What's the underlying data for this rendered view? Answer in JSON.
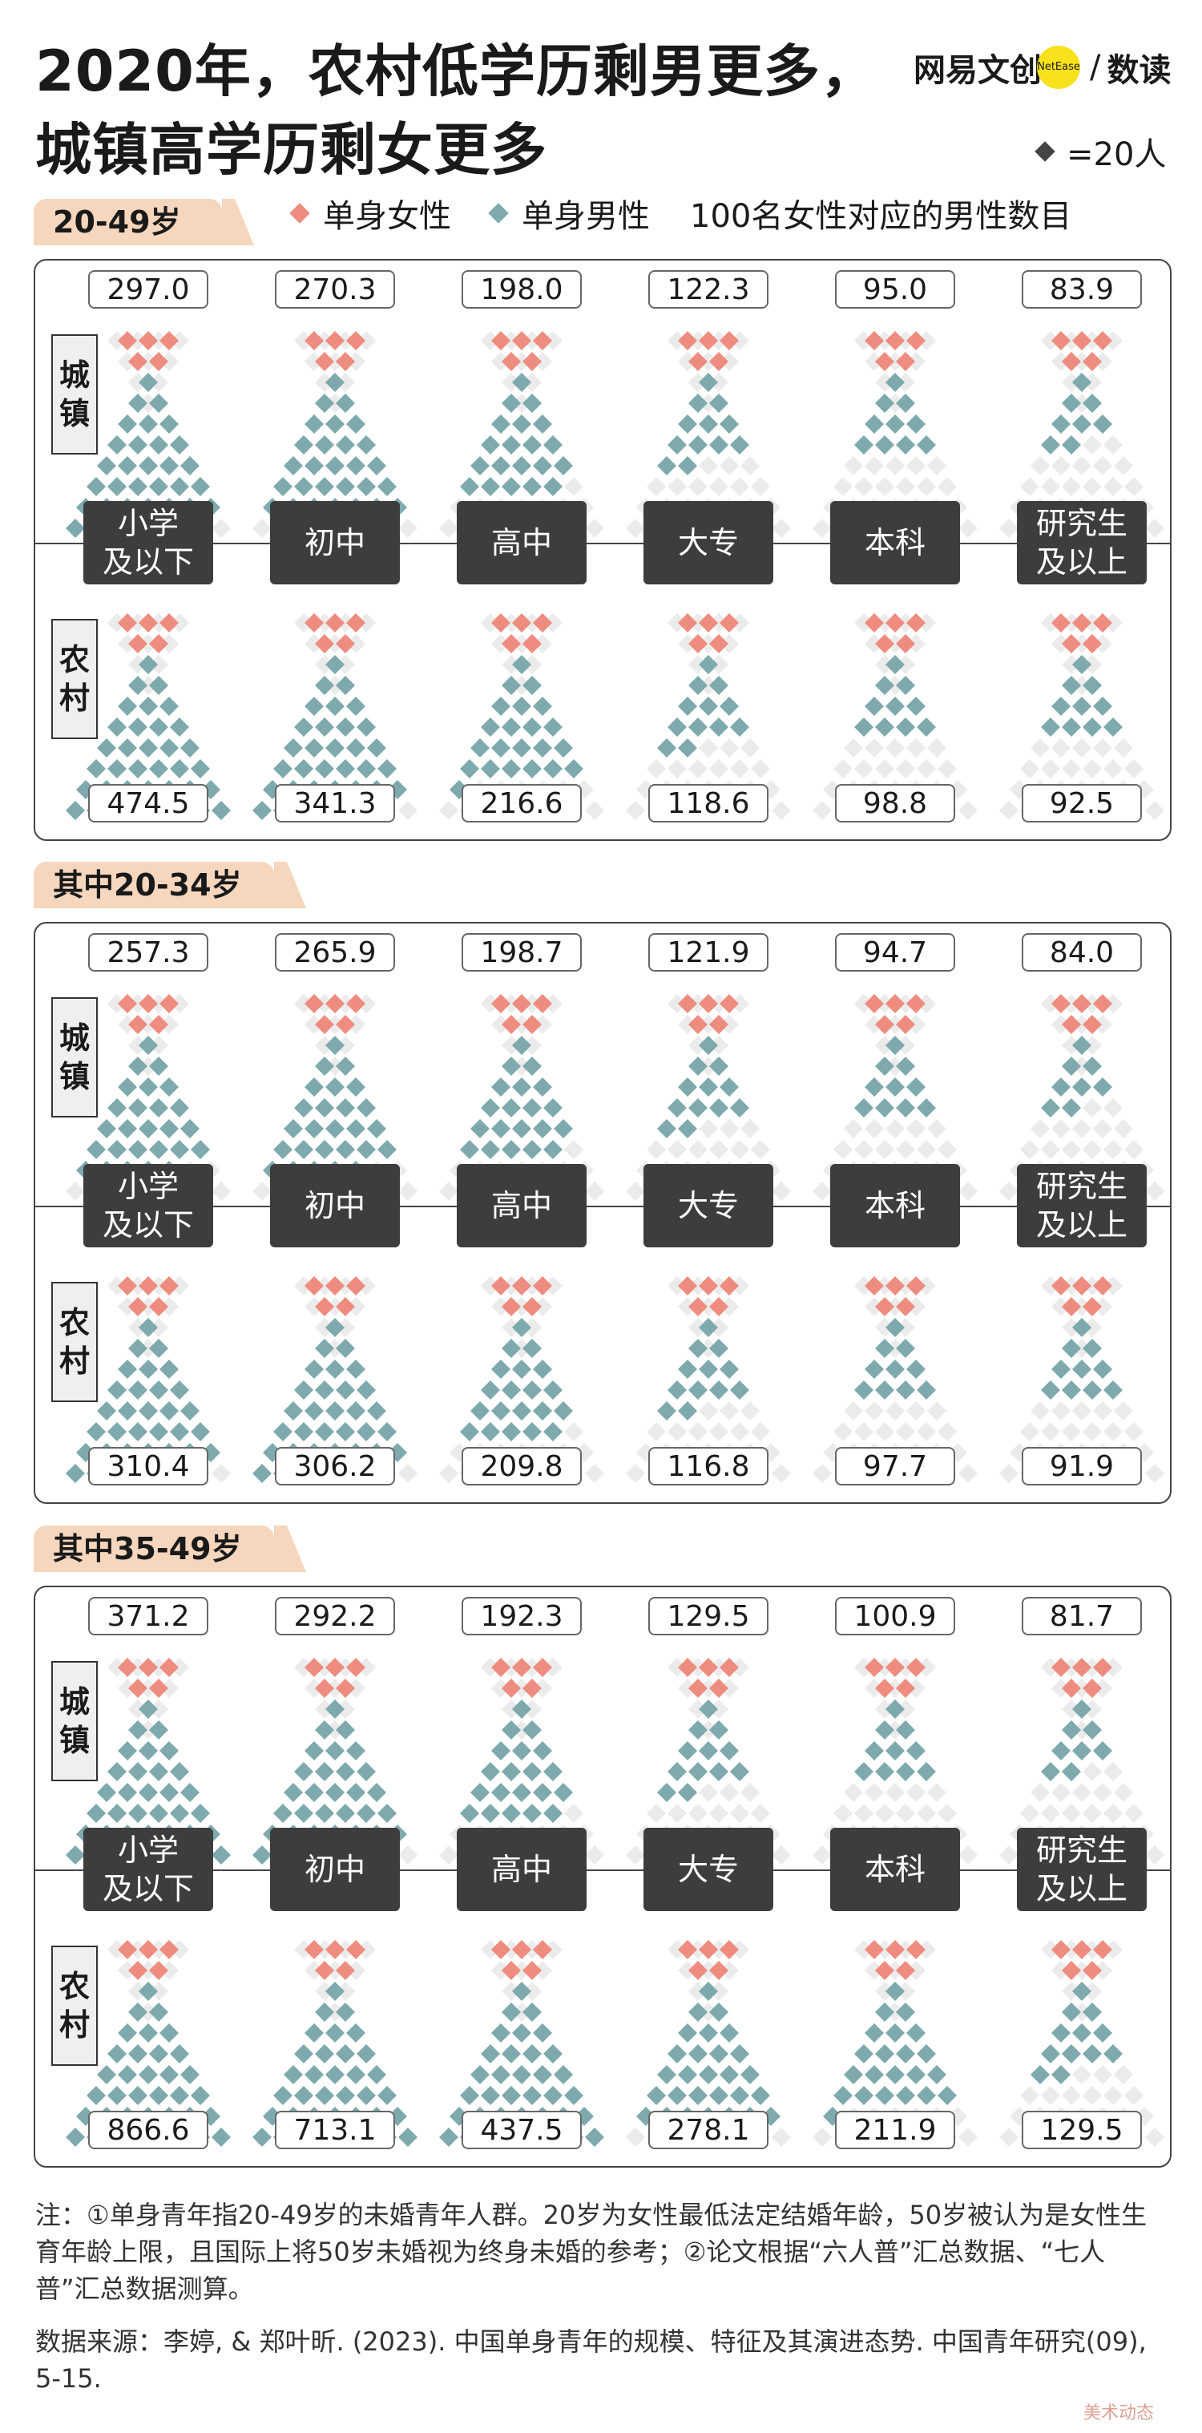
{
  "title": {
    "line1": "2020年，农村低学历剩男更多，",
    "line2": "城镇高学历剩女更多"
  },
  "brand": {
    "left": "网易",
    "mid": "文创",
    "badge": "NetEase",
    "slash": "/",
    "right": "数读"
  },
  "key": {
    "label": "=20人"
  },
  "legend": {
    "female": "单身女性",
    "male": "单身男性",
    "ratio_label": "100名女性对应的男性数目"
  },
  "colors": {
    "female": "#ee8c80",
    "male": "#7ea9ad",
    "empty": "#ebebeb",
    "tab": "#f6d6bd"
  },
  "labels": {
    "urban_a": "城",
    "urban_b": "镇",
    "rural_a": "农",
    "rural_b": "村"
  },
  "categories": [
    {
      "l1": "小学",
      "l2": "及以下"
    },
    {
      "l1": "初中",
      "l2": ""
    },
    {
      "l1": "高中",
      "l2": ""
    },
    {
      "l1": "大专",
      "l2": ""
    },
    {
      "l1": "本科",
      "l2": ""
    },
    {
      "l1": "研究生",
      "l2": "及以上"
    }
  ],
  "notes": "注：①单身青年指20-49岁的未婚青年人群。20岁为女性最低法定结婚年龄，50岁被认为是女性生育年龄上限，且国际上将50岁未婚视为终身未婚的参考；②论文根据“六人普”汇总数据、“七人普”汇总数据测算。",
  "source": "数据来源：李婷, & 郑叶昕. (2023). 中国单身青年的规模、特征及其演进态势. 中国青年研究(09), 5-15.",
  "watermark": "美术动态",
  "chart_data": [
    {
      "type": "table",
      "title": "20-49岁",
      "categories": [
        "小学及以下",
        "初中",
        "高中",
        "大专",
        "本科",
        "研究生及以上"
      ],
      "series": [
        {
          "name": "城镇",
          "values": [
            297.0,
            270.3,
            198.0,
            122.3,
            95.0,
            83.9
          ]
        },
        {
          "name": "农村",
          "values": [
            474.5,
            341.3,
            216.6,
            118.6,
            98.8,
            92.5
          ]
        }
      ]
    },
    {
      "type": "table",
      "title": "其中20-34岁",
      "categories": [
        "小学及以下",
        "初中",
        "高中",
        "大专",
        "本科",
        "研究生及以上"
      ],
      "series": [
        {
          "name": "城镇",
          "values": [
            257.3,
            265.9,
            198.7,
            121.9,
            94.7,
            84.0
          ]
        },
        {
          "name": "农村",
          "values": [
            310.4,
            306.2,
            209.8,
            116.8,
            97.7,
            91.9
          ]
        }
      ]
    },
    {
      "type": "table",
      "title": "其中35-49岁",
      "categories": [
        "小学及以下",
        "初中",
        "高中",
        "大专",
        "本科",
        "研究生及以上"
      ],
      "series": [
        {
          "name": "城镇",
          "values": [
            371.2,
            292.2,
            192.3,
            129.5,
            100.9,
            81.7
          ]
        },
        {
          "name": "农村",
          "values": [
            866.6,
            713.1,
            437.5,
            278.1,
            211.9,
            129.5
          ]
        }
      ]
    }
  ]
}
